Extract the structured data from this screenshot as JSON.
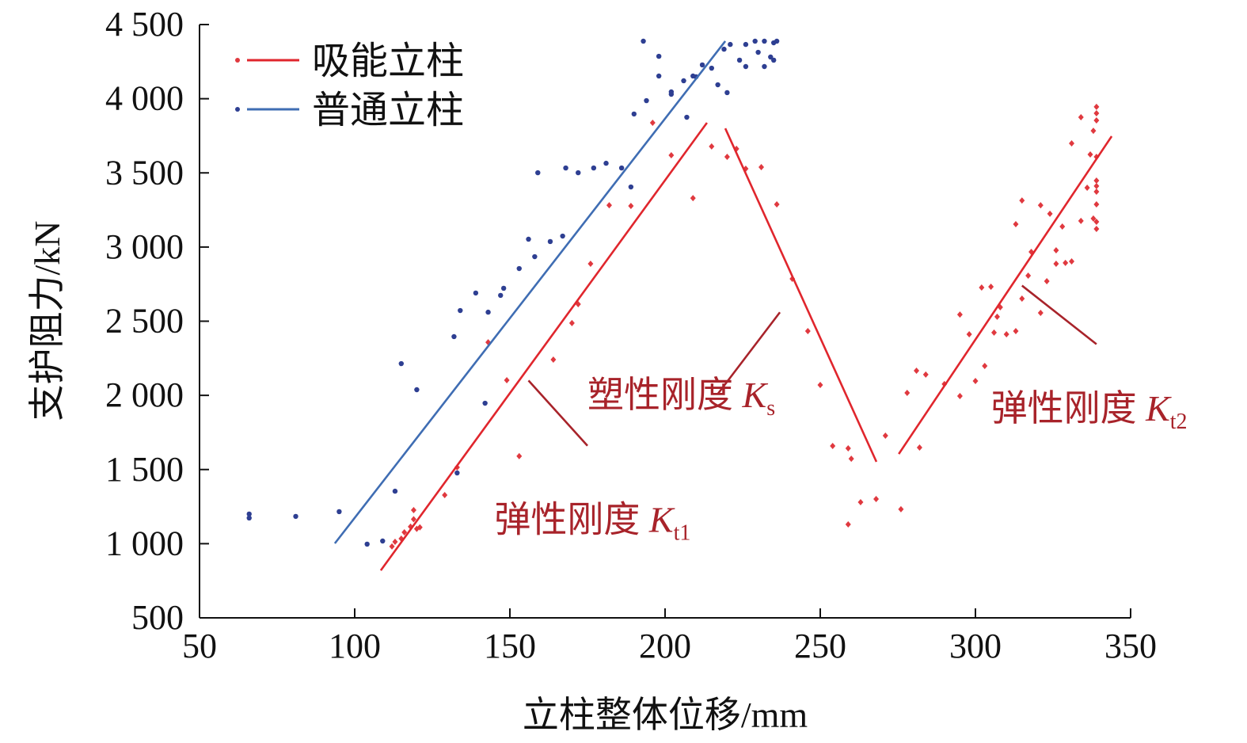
{
  "chart_data": {
    "type": "scatter",
    "xlabel": "立柱整体位移/mm",
    "ylabel": "支护阻力/kN",
    "xlim": [
      50,
      350
    ],
    "ylim": [
      500,
      4500
    ],
    "xticks": [
      50,
      100,
      150,
      200,
      250,
      300,
      350
    ],
    "xtick_labels": [
      "50",
      "100",
      "150",
      "200",
      "250",
      "300",
      "350"
    ],
    "yticks": [
      500,
      1000,
      1500,
      2000,
      2500,
      3000,
      3500,
      4000,
      4500
    ],
    "ytick_labels": [
      "500",
      "1 000",
      "1 500",
      "2 000",
      "2 500",
      "3 000",
      "3 500",
      "4 000",
      "4 500"
    ],
    "grid": false,
    "legend_position": "top-left",
    "colors": {
      "red_point": "#e0393f",
      "red_line": "#e0262d",
      "blue_point": "#2e3f92",
      "blue_line": "#3f6db3",
      "annotation": "#a8232a"
    },
    "series": [
      {
        "name": "吸能立柱",
        "color_key": "red",
        "marker": "diamond",
        "points": [
          [
            112,
            981
          ],
          [
            113,
            1013
          ],
          [
            115,
            1034
          ],
          [
            116,
            1077
          ],
          [
            118,
            1115
          ],
          [
            119,
            1226
          ],
          [
            119,
            1165
          ],
          [
            120,
            1100
          ],
          [
            121,
            1110
          ],
          [
            129,
            1328
          ],
          [
            133,
            1515
          ],
          [
            143,
            2358
          ],
          [
            149,
            2102
          ],
          [
            153,
            1590
          ],
          [
            164,
            2241
          ],
          [
            170,
            2487
          ],
          [
            172,
            2615
          ],
          [
            176,
            2887
          ],
          [
            182,
            3282
          ],
          [
            189,
            3277
          ],
          [
            196,
            3838
          ],
          [
            202,
            3619
          ],
          [
            209,
            3330
          ],
          [
            215,
            3678
          ],
          [
            220,
            3608
          ],
          [
            223,
            3662
          ],
          [
            226,
            3528
          ],
          [
            231,
            3539
          ],
          [
            236,
            3288
          ],
          [
            241,
            2786
          ],
          [
            246,
            2433
          ],
          [
            250,
            2070
          ],
          [
            254,
            1659
          ],
          [
            259,
            1643
          ],
          [
            260,
            1573
          ],
          [
            259,
            1130
          ],
          [
            263,
            1280
          ],
          [
            268,
            1301
          ],
          [
            271,
            1728
          ],
          [
            276,
            1232
          ],
          [
            278,
            2017
          ],
          [
            281,
            2166
          ],
          [
            282,
            1648
          ],
          [
            284,
            2140
          ],
          [
            290,
            2076
          ],
          [
            295,
            2545
          ],
          [
            295,
            1995
          ],
          [
            298,
            2412
          ],
          [
            300,
            2097
          ],
          [
            303,
            2198
          ],
          [
            302,
            2727
          ],
          [
            305,
            2732
          ],
          [
            306,
            2423
          ],
          [
            307,
            2530
          ],
          [
            308,
            2594
          ],
          [
            310,
            2412
          ],
          [
            313,
            2433
          ],
          [
            313,
            3154
          ],
          [
            315,
            3314
          ],
          [
            315,
            2652
          ],
          [
            317,
            2807
          ],
          [
            318,
            2967
          ],
          [
            321,
            3282
          ],
          [
            321,
            2556
          ],
          [
            323,
            2770
          ],
          [
            324,
            3224
          ],
          [
            326,
            2887
          ],
          [
            326,
            2978
          ],
          [
            328,
            3138
          ],
          [
            329,
            2893
          ],
          [
            331,
            2903
          ],
          [
            331,
            3699
          ],
          [
            334,
            3875
          ],
          [
            334,
            3176
          ],
          [
            336,
            3400
          ],
          [
            337,
            3624
          ],
          [
            338,
            3192
          ],
          [
            338,
            3784
          ],
          [
            339,
            3945
          ],
          [
            339,
            3902
          ],
          [
            339,
            3854
          ],
          [
            339,
            3608
          ],
          [
            339,
            3448
          ],
          [
            339,
            3411
          ],
          [
            339,
            3373
          ],
          [
            339,
            3288
          ],
          [
            339,
            3170
          ],
          [
            339,
            3122
          ]
        ]
      },
      {
        "name": "普通立柱",
        "color_key": "blue",
        "marker": "circle",
        "points": [
          [
            66,
            1200
          ],
          [
            66,
            1173
          ],
          [
            81,
            1184
          ],
          [
            95,
            1216
          ],
          [
            104,
            997
          ],
          [
            109,
            1018
          ],
          [
            113,
            1354
          ],
          [
            115,
            2214
          ],
          [
            120,
            2038
          ],
          [
            132,
            2396
          ],
          [
            133,
            1477
          ],
          [
            134,
            2572
          ],
          [
            139,
            2690
          ],
          [
            143,
            2561
          ],
          [
            142,
            1947
          ],
          [
            147,
            2674
          ],
          [
            148,
            2722
          ],
          [
            153,
            2855
          ],
          [
            156,
            3053
          ],
          [
            158,
            2935
          ],
          [
            159,
            3501
          ],
          [
            163,
            3037
          ],
          [
            167,
            3074
          ],
          [
            168,
            3533
          ],
          [
            172,
            3501
          ],
          [
            177,
            3533
          ],
          [
            181,
            3565
          ],
          [
            186,
            3533
          ],
          [
            189,
            3405
          ],
          [
            190,
            3897
          ],
          [
            193,
            4388
          ],
          [
            194,
            3987
          ],
          [
            198,
            4286
          ],
          [
            198,
            4153
          ],
          [
            202,
            4046
          ],
          [
            202,
            4030
          ],
          [
            206,
            4121
          ],
          [
            207,
            3875
          ],
          [
            209,
            4153
          ],
          [
            210,
            4148
          ],
          [
            212,
            4228
          ],
          [
            215,
            4206
          ],
          [
            217,
            4094
          ],
          [
            220,
            4041
          ],
          [
            219,
            4334
          ],
          [
            221,
            4366
          ],
          [
            224,
            4260
          ],
          [
            226,
            4217
          ],
          [
            226,
            4366
          ],
          [
            229,
            4388
          ],
          [
            230,
            4313
          ],
          [
            232,
            4388
          ],
          [
            232,
            4217
          ],
          [
            234,
            4281
          ],
          [
            235,
            4377
          ],
          [
            235,
            4260
          ],
          [
            236,
            4388
          ]
        ]
      }
    ],
    "fit_lines": [
      {
        "series": "普通立柱",
        "color_key": "blue",
        "from": [
          93.6,
          1002
        ],
        "to": [
          219.4,
          4388
        ]
      },
      {
        "series": "吸能立柱",
        "name": "Kt1",
        "color_key": "red",
        "from": [
          108.4,
          820
        ],
        "to": [
          213.5,
          3838
        ]
      },
      {
        "series": "吸能立柱",
        "name": "Ks",
        "color_key": "red",
        "from": [
          219.4,
          3800
        ],
        "to": [
          268.1,
          1552
        ]
      },
      {
        "series": "吸能立柱",
        "name": "Kt2",
        "color_key": "red",
        "from": [
          275.3,
          1605
        ],
        "to": [
          343.9,
          3747
        ]
      }
    ],
    "annotations": [
      {
        "text": "弹性刚度 ",
        "symbol": "K",
        "sub": "t1",
        "anchor": [
          145,
          1080
        ],
        "pointer_from": [
          156,
          2100
        ],
        "pointer_to": [
          175,
          1660
        ]
      },
      {
        "text": "塑性刚度 ",
        "symbol": "K",
        "sub": "s",
        "anchor": [
          175,
          1920
        ],
        "pointer_from": [
          217,
          2010
        ],
        "pointer_to": [
          237,
          2560
        ]
      },
      {
        "text": "弹性刚度 ",
        "symbol": "K",
        "sub": "t2",
        "anchor": [
          305,
          1830
        ],
        "pointer_from": [
          315,
          2740
        ],
        "pointer_to": [
          339,
          2345
        ]
      }
    ]
  }
}
